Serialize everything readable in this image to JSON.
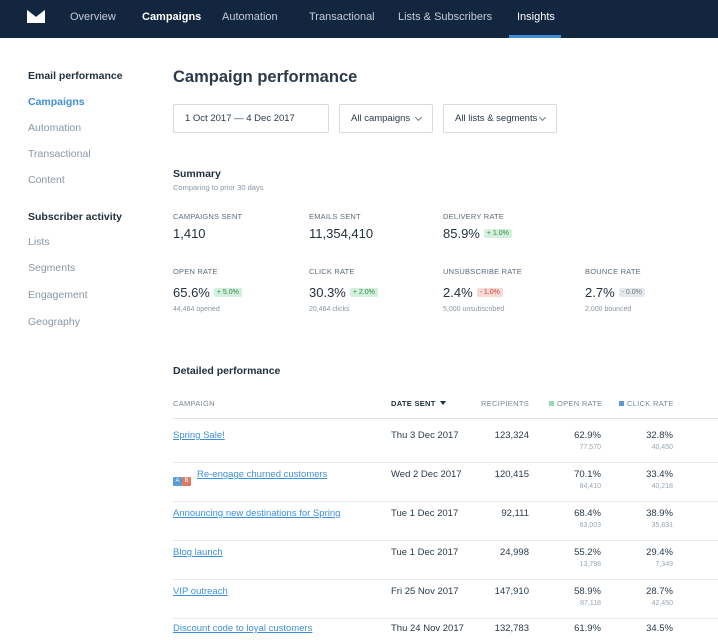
{
  "nav": {
    "items": [
      {
        "label": "Overview"
      },
      {
        "label": "Campaigns"
      },
      {
        "label": "Automation"
      },
      {
        "label": "Transactional"
      },
      {
        "label": "Lists & Subscribers"
      },
      {
        "label": "Insights"
      }
    ],
    "logo_icon": "envelope-logo-icon"
  },
  "sidebar": {
    "email_heading": "Email performance",
    "email_items": [
      {
        "label": "Campaigns"
      },
      {
        "label": "Automation"
      },
      {
        "label": "Transactional"
      },
      {
        "label": "Content"
      }
    ],
    "subscriber_heading": "Subscriber activity",
    "subscriber_items": [
      {
        "label": "Lists"
      },
      {
        "label": "Segments"
      },
      {
        "label": "Engagement"
      },
      {
        "label": "Geography"
      }
    ]
  },
  "main": {
    "title": "Campaign performance",
    "filters": {
      "date_range": "1 Oct 2017 — 4 Dec 2017",
      "campaigns": "All campaigns",
      "lists": "All lists & segments"
    },
    "summary": {
      "title": "Summary",
      "subtitle": "Comparing to prior 30 days",
      "metrics": {
        "campaigns_sent": {
          "label": "CAMPAIGNS SENT",
          "value": "1,410"
        },
        "emails_sent": {
          "label": "EMAILS SENT",
          "value": "11,354,410"
        },
        "delivery_rate": {
          "label": "DELIVERY RATE",
          "value": "85.9%",
          "change": "+ 1.0%"
        },
        "open_rate": {
          "label": "OPEN RATE",
          "value": "65.6%",
          "change": "+ 5.0%",
          "sub": "44,464 opened"
        },
        "click_rate": {
          "label": "CLICK RATE",
          "value": "30.3%",
          "change": "+ 2.0%",
          "sub": "20,464 clicks"
        },
        "unsubscribe_rate": {
          "label": "UNSUBSCRIBE RATE",
          "value": "2.4%",
          "change": "- 1.0%",
          "sub": "5,000 unsubscribed"
        },
        "bounce_rate": {
          "label": "BOUNCE RATE",
          "value": "2.7%",
          "change": "- 0.0%",
          "sub": "2,000 bounced"
        }
      }
    },
    "detailed": {
      "title": "Detailed performance",
      "headers": {
        "campaign": "CAMPAIGN",
        "date_sent": "DATE SENT",
        "recipients": "RECIPIENTS",
        "open_rate": "OPEN RATE",
        "click_rate": "CLICK RATE"
      },
      "ab_badge": {
        "a": "A",
        "b": "B"
      },
      "rows": [
        {
          "name": "Spring Sale!",
          "date": "Thu 3 Dec 2017",
          "recipients": "123,324",
          "open": "62.9%",
          "open_sub": "77,570",
          "click": "32.8%",
          "click_sub": "40,450"
        },
        {
          "name": "Re-engage churned customers",
          "date": "Wed 2 Dec 2017",
          "recipients": "120,415",
          "open": "70.1%",
          "open_sub": "84,410",
          "click": "33.4%",
          "click_sub": "40,218"
        },
        {
          "name": "Announcing new destinations for Spring",
          "date": "Tue 1 Dec 2017",
          "recipients": "92,111",
          "open": "68.4%",
          "open_sub": "63,003",
          "click": "38.9%",
          "click_sub": "35,831"
        },
        {
          "name": "Blog launch",
          "date": "Tue 1 Dec 2017",
          "recipients": "24,998",
          "open": "55.2%",
          "open_sub": "13,798",
          "click": "29.4%",
          "click_sub": "7,349"
        },
        {
          "name": "VIP outreach",
          "date": "Fri 25 Nov 2017",
          "recipients": "147,910",
          "open": "58.9%",
          "open_sub": "87,118",
          "click": "28.7%",
          "click_sub": "42,450"
        },
        {
          "name": "Discount code to loyal customers",
          "date": "Thu 24 Nov 2017",
          "recipients": "132,783",
          "open": "61.9%",
          "open_sub": "",
          "click": "34.5%",
          "click_sub": ""
        }
      ]
    }
  },
  "colors": {
    "nav_bg": "#13263f",
    "accent": "#3f8fd8",
    "open_rate_key": "#9ad7b4",
    "click_rate_key": "#5b9bd5",
    "ab_a": "#5b9bd5",
    "ab_b": "#e07a5f"
  }
}
